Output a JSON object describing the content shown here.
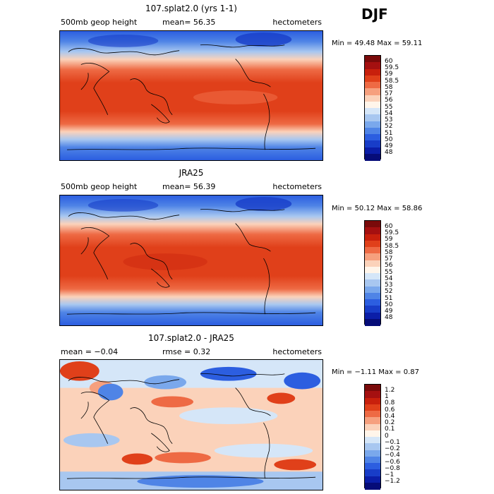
{
  "season": "DJF",
  "panels": [
    {
      "title": "107.splat2.0 (yrs 1-1)",
      "left_label": "500mb geop height",
      "center_label": "mean=  56.35",
      "units": "hectometers",
      "min_max": "Min =  49.48 Max =  59.11",
      "colorbar": {
        "labels": [
          "60",
          "59.5",
          "59",
          "58.5",
          "58",
          "57",
          "56",
          "55",
          "54",
          "53",
          "52",
          "51",
          "50",
          "49",
          "48"
        ],
        "colors": [
          "#7a0a0a",
          "#a51010",
          "#c8200c",
          "#e0401a",
          "#ee6a44",
          "#f6a07e",
          "#fbd2ba",
          "#fff5ea",
          "#d5e6f8",
          "#a8c7f0",
          "#7aa8ec",
          "#4f84e6",
          "#2c5ee0",
          "#183dc8",
          "#0b1ea8",
          "#060c78"
        ]
      }
    },
    {
      "title": "JRA25",
      "left_label": "500mb geop height",
      "center_label": "mean=  56.39",
      "units": "hectometers",
      "min_max": "Min =  50.12 Max =  58.86",
      "colorbar": {
        "labels": [
          "60",
          "59.5",
          "59",
          "58.5",
          "58",
          "57",
          "56",
          "55",
          "54",
          "53",
          "52",
          "51",
          "50",
          "49",
          "48"
        ],
        "colors": [
          "#7a0a0a",
          "#a51010",
          "#c8200c",
          "#e0401a",
          "#ee6a44",
          "#f6a07e",
          "#fbd2ba",
          "#fff5ea",
          "#d5e6f8",
          "#a8c7f0",
          "#7aa8ec",
          "#4f84e6",
          "#2c5ee0",
          "#183dc8",
          "#0b1ea8",
          "#060c78"
        ]
      }
    },
    {
      "title": "107.splat2.0 - JRA25",
      "left_label": "mean =  −0.04",
      "center_label": "rmse =   0.32",
      "units": "hectometers",
      "min_max": "Min =  −1.11 Max =   0.87",
      "colorbar": {
        "labels": [
          "1.2",
          "1",
          "0.8",
          "0.6",
          "0.4",
          "0.2",
          "0.1",
          "0",
          "−0.1",
          "−0.2",
          "−0.4",
          "−0.6",
          "−0.8",
          "−1",
          "−1.2"
        ],
        "colors": [
          "#7a0a0a",
          "#a51010",
          "#c8200c",
          "#e0401a",
          "#ee6a44",
          "#f6a07e",
          "#fbd2ba",
          "#fff5ea",
          "#d5e6f8",
          "#a8c7f0",
          "#7aa8ec",
          "#4f84e6",
          "#2c5ee0",
          "#183dc8",
          "#0b1ea8",
          "#060c78"
        ]
      }
    }
  ]
}
